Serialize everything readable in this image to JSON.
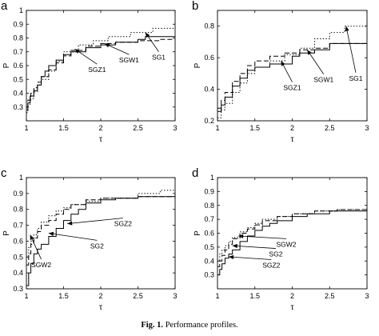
{
  "caption": {
    "label": "Fig. 1.",
    "text": "Performance profiles."
  },
  "chart_data": [
    {
      "type": "line",
      "panel": "a",
      "step": true,
      "xlabel": "τ",
      "ylabel": "P",
      "xlim": [
        1,
        3
      ],
      "ylim": [
        0.2,
        1.0
      ],
      "xticks": [
        1,
        1.5,
        2,
        2.5,
        3
      ],
      "yticks": [
        0.3,
        0.4,
        0.5,
        0.6,
        0.7,
        0.8,
        0.9,
        1
      ],
      "series": [
        {
          "name": "SGZ1",
          "style": "solid",
          "x": [
            1,
            1.02,
            1.05,
            1.1,
            1.15,
            1.2,
            1.25,
            1.3,
            1.4,
            1.5,
            1.6,
            1.8,
            2.0,
            2.2,
            2.5,
            2.6,
            3
          ],
          "y": [
            0.28,
            0.33,
            0.38,
            0.42,
            0.46,
            0.52,
            0.56,
            0.6,
            0.64,
            0.68,
            0.7,
            0.73,
            0.75,
            0.77,
            0.79,
            0.81,
            0.81
          ]
        },
        {
          "name": "SGW1",
          "style": "dashed",
          "x": [
            1,
            1.02,
            1.06,
            1.1,
            1.15,
            1.2,
            1.3,
            1.4,
            1.5,
            1.6,
            1.8,
            2.0,
            2.2,
            2.5,
            2.8,
            3
          ],
          "y": [
            0.3,
            0.35,
            0.4,
            0.44,
            0.48,
            0.52,
            0.57,
            0.62,
            0.67,
            0.71,
            0.74,
            0.76,
            0.77,
            0.78,
            0.79,
            0.79
          ]
        },
        {
          "name": "SG1",
          "style": "dotted",
          "x": [
            1,
            1.02,
            1.05,
            1.1,
            1.15,
            1.2,
            1.3,
            1.4,
            1.5,
            1.7,
            1.9,
            2.1,
            2.4,
            2.7,
            3
          ],
          "y": [
            0.26,
            0.32,
            0.36,
            0.41,
            0.46,
            0.5,
            0.56,
            0.63,
            0.7,
            0.75,
            0.78,
            0.81,
            0.84,
            0.87,
            0.87
          ]
        }
      ],
      "annotations": [
        {
          "text": "SGZ1",
          "x": 1.95,
          "y": 0.57,
          "target_x": 1.65,
          "target_y": 0.72
        },
        {
          "text": "SGW1",
          "x": 2.38,
          "y": 0.64,
          "target_x": 2.05,
          "target_y": 0.76
        },
        {
          "text": "SG1",
          "x": 2.78,
          "y": 0.66,
          "target_x": 2.6,
          "target_y": 0.84
        }
      ]
    },
    {
      "type": "line",
      "panel": "b",
      "step": true,
      "xlabel": "τ",
      "ylabel": "P",
      "xlim": [
        1,
        3
      ],
      "ylim": [
        0.2,
        0.9
      ],
      "xticks": [
        1,
        1.5,
        2,
        2.5,
        3
      ],
      "yticks": [
        0.2,
        0.4,
        0.6,
        0.8
      ],
      "series": [
        {
          "name": "SGZ1",
          "style": "solid",
          "x": [
            1,
            1.05,
            1.1,
            1.2,
            1.3,
            1.4,
            1.5,
            1.7,
            2.0,
            2.1,
            2.3,
            2.5,
            3
          ],
          "y": [
            0.26,
            0.3,
            0.35,
            0.42,
            0.47,
            0.52,
            0.54,
            0.56,
            0.61,
            0.63,
            0.65,
            0.69,
            0.69
          ]
        },
        {
          "name": "SGW1",
          "style": "dashed",
          "x": [
            1,
            1.05,
            1.1,
            1.2,
            1.3,
            1.4,
            1.5,
            1.7,
            1.9,
            2.1,
            2.3,
            2.5,
            3
          ],
          "y": [
            0.28,
            0.33,
            0.38,
            0.45,
            0.5,
            0.55,
            0.58,
            0.61,
            0.63,
            0.65,
            0.66,
            0.69,
            0.69
          ]
        },
        {
          "name": "SG1",
          "style": "dotted",
          "x": [
            1,
            1.05,
            1.1,
            1.2,
            1.3,
            1.4,
            1.5,
            1.7,
            1.9,
            2.1,
            2.3,
            2.5,
            2.7,
            3
          ],
          "y": [
            0.22,
            0.27,
            0.31,
            0.38,
            0.44,
            0.5,
            0.54,
            0.58,
            0.62,
            0.66,
            0.72,
            0.76,
            0.8,
            0.83
          ]
        }
      ],
      "annotations": [
        {
          "text": "SGZ1",
          "x": 2.0,
          "y": 0.41,
          "target_x": 1.85,
          "target_y": 0.58
        },
        {
          "text": "SGW1",
          "x": 2.42,
          "y": 0.46,
          "target_x": 2.2,
          "target_y": 0.65
        },
        {
          "text": "SG1",
          "x": 2.85,
          "y": 0.47,
          "target_x": 2.72,
          "target_y": 0.8
        }
      ]
    },
    {
      "type": "line",
      "panel": "c",
      "step": true,
      "xlabel": "τ",
      "ylabel": "P",
      "xlim": [
        1,
        3
      ],
      "ylim": [
        0.3,
        1.0
      ],
      "xticks": [
        1,
        1.5,
        2,
        2.5,
        3
      ],
      "yticks": [
        0.3,
        0.4,
        0.5,
        0.6,
        0.7,
        0.8,
        0.9,
        1
      ],
      "series": [
        {
          "name": "SGZ2",
          "style": "solid",
          "x": [
            1,
            1.03,
            1.06,
            1.1,
            1.15,
            1.2,
            1.3,
            1.4,
            1.5,
            1.6,
            1.7,
            1.8,
            2.0,
            2.2,
            2.5,
            3
          ],
          "y": [
            0.32,
            0.4,
            0.46,
            0.52,
            0.55,
            0.58,
            0.63,
            0.68,
            0.73,
            0.77,
            0.8,
            0.84,
            0.86,
            0.87,
            0.88,
            0.89
          ]
        },
        {
          "name": "SGW2",
          "style": "dashed",
          "x": [
            1,
            1.03,
            1.06,
            1.1,
            1.15,
            1.2,
            1.3,
            1.4,
            1.5,
            1.6,
            1.8,
            2.0,
            2.5,
            3
          ],
          "y": [
            0.45,
            0.52,
            0.58,
            0.62,
            0.66,
            0.7,
            0.73,
            0.77,
            0.8,
            0.83,
            0.86,
            0.87,
            0.88,
            0.89
          ]
        },
        {
          "name": "SG2",
          "style": "dotted",
          "x": [
            1,
            1.03,
            1.06,
            1.1,
            1.15,
            1.2,
            1.3,
            1.4,
            1.5,
            1.6,
            1.8,
            2.0,
            2.5,
            2.8,
            3
          ],
          "y": [
            0.5,
            0.56,
            0.6,
            0.64,
            0.68,
            0.72,
            0.76,
            0.79,
            0.81,
            0.83,
            0.85,
            0.87,
            0.9,
            0.92,
            0.92
          ]
        }
      ],
      "annotations": [
        {
          "text": "SGZ2",
          "x": 2.3,
          "y": 0.71,
          "target_x": 1.55,
          "target_y": 0.71
        },
        {
          "text": "SG2",
          "x": 1.95,
          "y": 0.57,
          "target_x": 1.3,
          "target_y": 0.65
        },
        {
          "text": "SGW2",
          "x": 1.2,
          "y": 0.45,
          "target_x": 1.05,
          "target_y": 0.64
        }
      ]
    },
    {
      "type": "line",
      "panel": "d",
      "step": true,
      "xlabel": "τ",
      "ylabel": "P",
      "xlim": [
        1,
        3
      ],
      "ylim": [
        0.2,
        1.0
      ],
      "xticks": [
        1,
        1.5,
        2,
        2.5,
        3
      ],
      "yticks": [
        0.3,
        0.4,
        0.5,
        0.6,
        0.7,
        0.8,
        0.9,
        1
      ],
      "series": [
        {
          "name": "SGZ2",
          "style": "solid",
          "x": [
            1,
            1.03,
            1.06,
            1.1,
            1.15,
            1.2,
            1.3,
            1.4,
            1.5,
            1.6,
            1.7,
            1.8,
            2.0,
            2.2,
            2.5,
            3
          ],
          "y": [
            0.3,
            0.34,
            0.38,
            0.42,
            0.45,
            0.48,
            0.54,
            0.58,
            0.62,
            0.65,
            0.67,
            0.69,
            0.72,
            0.74,
            0.76,
            0.78
          ]
        },
        {
          "name": "SG2",
          "style": "dashed",
          "x": [
            1,
            1.03,
            1.06,
            1.1,
            1.15,
            1.2,
            1.3,
            1.4,
            1.5,
            1.6,
            1.8,
            2.0,
            2.3,
            2.6,
            3
          ],
          "y": [
            0.36,
            0.4,
            0.44,
            0.48,
            0.52,
            0.56,
            0.6,
            0.63,
            0.66,
            0.69,
            0.72,
            0.74,
            0.76,
            0.77,
            0.77
          ]
        },
        {
          "name": "SGW2",
          "style": "dotted",
          "x": [
            1,
            1.03,
            1.06,
            1.1,
            1.15,
            1.2,
            1.3,
            1.4,
            1.5,
            1.6,
            1.8,
            2.0,
            2.3,
            2.6,
            3
          ],
          "y": [
            0.4,
            0.45,
            0.48,
            0.51,
            0.54,
            0.57,
            0.61,
            0.64,
            0.67,
            0.7,
            0.72,
            0.74,
            0.76,
            0.77,
            0.77
          ]
        }
      ],
      "annotations": [
        {
          "text": "SGW2",
          "x": 1.92,
          "y": 0.52,
          "target_x": 1.28,
          "target_y": 0.58
        },
        {
          "text": "SG2",
          "x": 1.78,
          "y": 0.45,
          "target_x": 1.2,
          "target_y": 0.51
        },
        {
          "text": "SGZ2",
          "x": 1.72,
          "y": 0.37,
          "target_x": 1.15,
          "target_y": 0.43
        }
      ]
    }
  ]
}
